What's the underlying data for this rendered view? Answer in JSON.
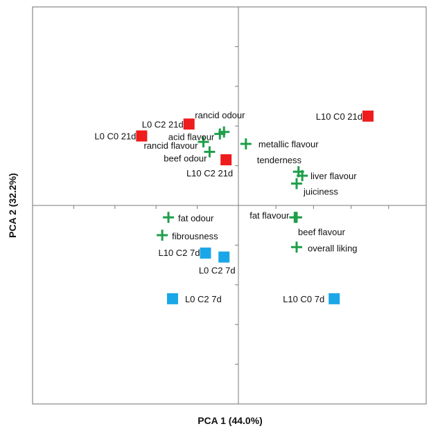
{
  "chart_data": {
    "type": "scatter",
    "title": "",
    "xlabel": "PCA 1 (44.0%)",
    "ylabel": "PCA 2 (32.2%)",
    "xlim": [
      -1.0,
      1.0
    ],
    "ylim": [
      -1.0,
      1.0
    ],
    "x_ticks": [
      -0.8,
      -0.6,
      -0.4,
      -0.2,
      0.2,
      0.4,
      0.6,
      0.8
    ],
    "y_ticks": [
      -0.8,
      -0.6,
      -0.4,
      -0.2,
      0.2,
      0.4,
      0.6,
      0.8
    ],
    "tick_labels_shown": false,
    "grid": false,
    "legend": "none",
    "series": [
      {
        "marker": "square",
        "color": "#ee1c1c",
        "points": [
          {
            "label": "L0 C2 21d",
            "x": -0.24,
            "y": 0.41
          },
          {
            "label": "L0 C0 21d",
            "x": -0.47,
            "y": 0.35
          },
          {
            "label": "L10 C2 21d",
            "x": -0.06,
            "y": 0.23
          },
          {
            "label": "L10 C0 21d",
            "x": 0.69,
            "y": 0.45
          }
        ]
      },
      {
        "marker": "square",
        "color": "#1aa7e8",
        "points": [
          {
            "label": "L10 C2 7d",
            "x": -0.16,
            "y": -0.24
          },
          {
            "label": "L0 C2 7d",
            "x": -0.07,
            "y": -0.26
          },
          {
            "label": "L0 C2 7d",
            "x": -0.32,
            "y": -0.47
          },
          {
            "label": "L10 C0 7d",
            "x": 0.51,
            "y": -0.47
          }
        ]
      },
      {
        "marker": "plus",
        "color": "#1f9e4a",
        "points": [
          {
            "label": "rancid odour",
            "x": -0.07,
            "y": 0.37
          },
          {
            "label": "acid flavour",
            "x": -0.09,
            "y": 0.36
          },
          {
            "label": "rancid flavour",
            "x": -0.17,
            "y": 0.32
          },
          {
            "label": "beef odour",
            "x": -0.14,
            "y": 0.27
          },
          {
            "label": "metallic flavour",
            "x": 0.04,
            "y": 0.31
          },
          {
            "label": "tenderness",
            "x": 0.32,
            "y": 0.17
          },
          {
            "label": "liver flavour",
            "x": 0.34,
            "y": 0.15
          },
          {
            "label": "juiciness",
            "x": 0.31,
            "y": 0.11
          },
          {
            "label": "fat odour",
            "x": -0.34,
            "y": -0.06
          },
          {
            "label": "fibrousness",
            "x": -0.37,
            "y": -0.15
          },
          {
            "label": "fat flavour",
            "x": 0.3,
            "y": -0.06
          },
          {
            "label": "beef flavour",
            "x": 0.31,
            "y": -0.06
          },
          {
            "label": "overall liking",
            "x": 0.31,
            "y": -0.21
          }
        ]
      }
    ]
  }
}
